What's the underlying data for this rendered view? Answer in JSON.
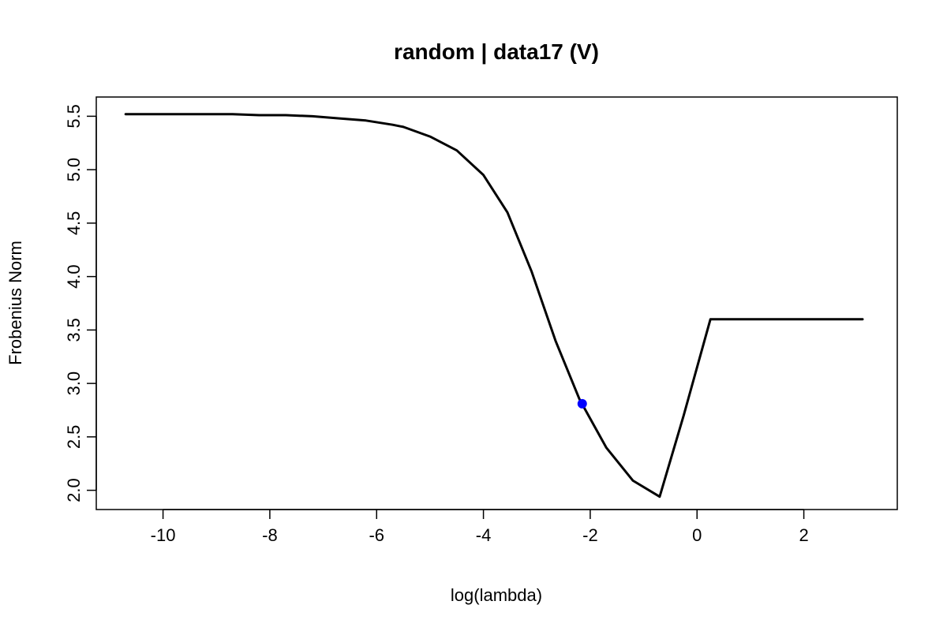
{
  "chart_data": {
    "type": "line",
    "title": "random | data17 (V)",
    "xlabel": "log(lambda)",
    "ylabel": "Frobenius Norm",
    "xlim": [
      -11.25,
      3.75
    ],
    "ylim": [
      1.82,
      5.68
    ],
    "xticks": [
      -10,
      -8,
      -6,
      -4,
      -2,
      0,
      2
    ],
    "yticks": [
      2.0,
      2.5,
      3.0,
      3.5,
      4.0,
      4.5,
      5.0,
      5.5
    ],
    "xtick_labels": [
      "-10",
      "-8",
      "-6",
      "-4",
      "-2",
      "0",
      "2"
    ],
    "ytick_labels": [
      "2.0",
      "2.5",
      "3.0",
      "3.5",
      "4.0",
      "4.5",
      "5.0",
      "5.5"
    ],
    "grid": false,
    "series": [
      {
        "color": "#000000",
        "x": [
          -10.7,
          -10.2,
          -9.7,
          -9.2,
          -8.7,
          -8.2,
          -7.7,
          -7.2,
          -6.7,
          -6.2,
          -5.7,
          -5.5,
          -5.0,
          -4.5,
          -4.0,
          -3.55,
          -3.1,
          -2.65,
          -2.2,
          -1.7,
          -1.2,
          -0.7,
          -0.25,
          0.25,
          0.8,
          1.3,
          1.8,
          2.3,
          2.8,
          3.1
        ],
        "y": [
          5.52,
          5.52,
          5.52,
          5.52,
          5.52,
          5.51,
          5.51,
          5.5,
          5.48,
          5.46,
          5.42,
          5.4,
          5.31,
          5.18,
          4.95,
          4.6,
          4.05,
          3.4,
          2.85,
          2.4,
          2.09,
          1.94,
          2.7,
          3.6,
          3.6,
          3.6,
          3.6,
          3.6,
          3.6,
          3.6
        ]
      }
    ],
    "highlight_point": {
      "x": -2.15,
      "y": 2.81,
      "color": "#0000ff"
    }
  }
}
